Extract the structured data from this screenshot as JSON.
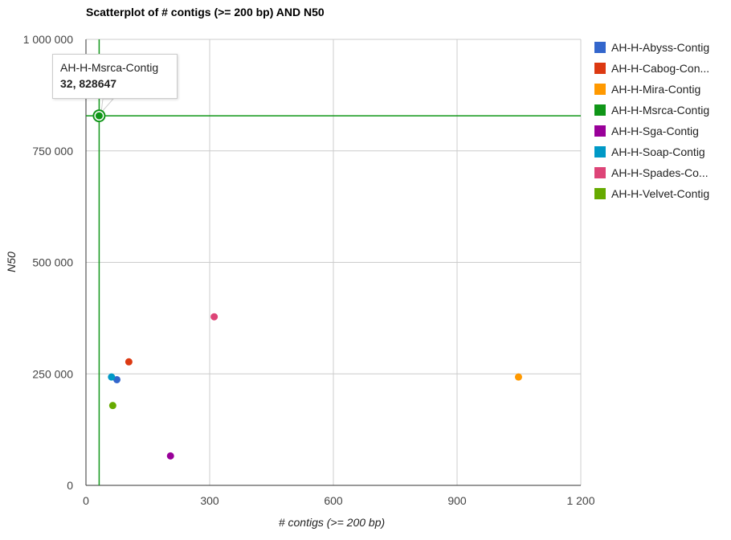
{
  "chart_data": {
    "type": "scatter",
    "title": "Scatterplot of # contigs (>= 200 bp) AND N50",
    "xlabel": "# contigs (>= 200 bp)",
    "ylabel": "N50",
    "xlim": [
      0,
      1200
    ],
    "ylim": [
      0,
      1000000
    ],
    "x_ticks": [
      0,
      300,
      600,
      900,
      1200
    ],
    "x_tick_labels": [
      "0",
      "300",
      "600",
      "900",
      "1 200"
    ],
    "y_ticks": [
      0,
      250000,
      500000,
      750000,
      1000000
    ],
    "y_tick_labels": [
      "0",
      "250 000",
      "500 000",
      "750 000",
      "1 000 000"
    ],
    "grid": true,
    "legend_position": "right",
    "series": [
      {
        "name": "AH-H-Abyss-Contig",
        "label": "AH-H-Abyss-Contig",
        "color": "#3366cc",
        "x": 75,
        "y": 237000
      },
      {
        "name": "AH-H-Cabog-Contig",
        "label": "AH-H-Cabog-Con...",
        "color": "#dc3912",
        "x": 104,
        "y": 277000
      },
      {
        "name": "AH-H-Mira-Contig",
        "label": "AH-H-Mira-Contig",
        "color": "#ff9900",
        "x": 1049,
        "y": 243000
      },
      {
        "name": "AH-H-Msrca-Contig",
        "label": "AH-H-Msrca-Contig",
        "color": "#109618",
        "x": 32,
        "y": 828647
      },
      {
        "name": "AH-H-Sga-Contig",
        "label": "AH-H-Sga-Contig",
        "color": "#990099",
        "x": 205,
        "y": 66000
      },
      {
        "name": "AH-H-Soap-Contig",
        "label": "AH-H-Soap-Contig",
        "color": "#0099c6",
        "x": 62,
        "y": 243000
      },
      {
        "name": "AH-H-Spades-Contig",
        "label": "AH-H-Spades-Co...",
        "color": "#dd4477",
        "x": 311,
        "y": 378000
      },
      {
        "name": "AH-H-Velvet-Contig",
        "label": "AH-H-Velvet-Contig",
        "color": "#66aa00",
        "x": 65,
        "y": 179000
      }
    ],
    "highlight": {
      "series": "AH-H-Msrca-Contig",
      "tooltip_name": "AH-H-Msrca-Contig",
      "tooltip_value": "32, 828647",
      "crosshair_color": "#109618"
    }
  }
}
